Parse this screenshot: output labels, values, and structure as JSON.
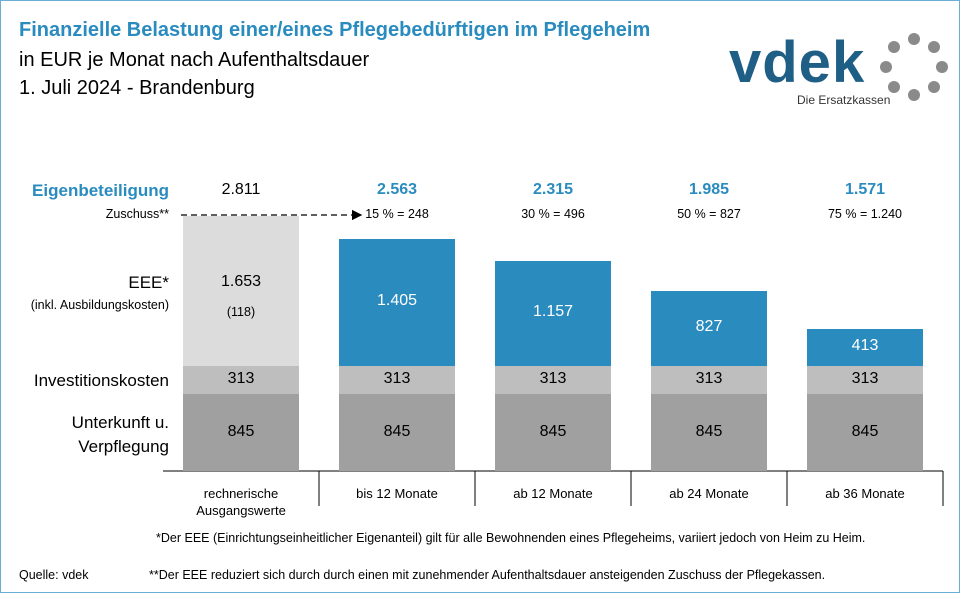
{
  "title": "Finanzielle Belastung einer/eines Pflegebedürftigen im Pflegeheim",
  "subtitle": [
    "in EUR je Monat nach Aufenthaltsdauer",
    "1. Juli 2024 - Brandenburg"
  ],
  "logo": {
    "name": "vdek",
    "tagline": "Die Ersatzkassen"
  },
  "footnotes": [
    "*Der EEE (Einrichtungseinheitlicher Eigenanteil) gilt für alle Bewohnenden eines Pflegeheims, variiert jedoch von Heim zu Heim.",
    "**Der EEE reduziert sich durch durch einen mit zunehmender Aufenthaltsdauer ansteigenden Zuschuss der Pflegekassen."
  ],
  "source": "Quelle: vdek",
  "chart_data": {
    "type": "bar",
    "stacked": true,
    "categories": [
      "rechnerische Ausgangswerte",
      "bis 12 Monate",
      "ab 12 Monate",
      "ab 24 Monate",
      "ab 36 Monate"
    ],
    "series": [
      {
        "name": "Unterkunft u. Verpflegung",
        "color": "#a0a0a0",
        "values": [
          845,
          845,
          845,
          845,
          845
        ]
      },
      {
        "name": "Investitionskosten",
        "color": "#bebebe",
        "values": [
          313,
          313,
          313,
          313,
          313
        ]
      },
      {
        "name": "EEE*",
        "note": "(inkl. Ausbildungskosten)",
        "colors": [
          "#dcdcdc",
          "#2a8bbf",
          "#2a8bbf",
          "#2a8bbf",
          "#2a8bbf"
        ],
        "values": [
          1653,
          1405,
          1157,
          827,
          413
        ],
        "value_labels": [
          "1.653",
          "1.405",
          "1.157",
          "827",
          "413"
        ],
        "sub_labels": [
          "(118)",
          null,
          null,
          null,
          null
        ]
      }
    ],
    "totals": {
      "label": "Eigenbeteiligung",
      "values": [
        2811,
        2563,
        2315,
        1985,
        1571
      ],
      "value_labels": [
        "2.811",
        "2.563",
        "2.315",
        "1.985",
        "1.571"
      ],
      "colors": [
        "#000000",
        "#2a8bbf",
        "#2a8bbf",
        "#2a8bbf",
        "#2a8bbf"
      ]
    },
    "zuschuss": {
      "label": "Zuschuss**",
      "values": [
        null,
        "15 % = 248",
        "30 % = 496",
        "50 % = 827",
        "75 % = 1.240"
      ]
    }
  }
}
